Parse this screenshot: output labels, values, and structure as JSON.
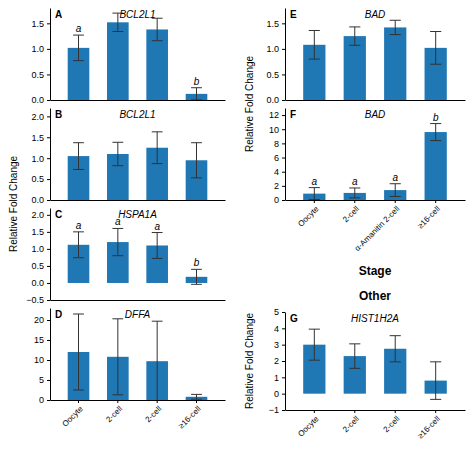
{
  "chart_data": [
    {
      "type": "bar",
      "title": "BCL2L1",
      "panel_label": "A",
      "ylabel": "Relative Fold Change",
      "categories": [
        null,
        null,
        null,
        null
      ],
      "tick_labels": "y",
      "values": [
        1.02,
        1.52,
        1.38,
        0.12
      ],
      "errors": [
        0.25,
        0.18,
        0.22,
        0.12
      ],
      "sig_letters": [
        "a",
        null,
        null,
        "b"
      ],
      "ylim": [
        0,
        1.8
      ],
      "yticks": [
        {
          "value": 0,
          "label": "0.0"
        },
        0.5,
        {
          "value": 1.0,
          "label": "1.0"
        },
        1.5
      ]
    },
    {
      "type": "bar",
      "title": "BCL2L1",
      "panel_label": "B",
      "categories": [
        null,
        null,
        null,
        null
      ],
      "tick_labels": "y",
      "values": [
        1.05,
        1.1,
        1.25,
        0.95
      ],
      "errors": [
        0.32,
        0.28,
        0.38,
        0.42
      ],
      "ylim": [
        0,
        2.2
      ],
      "yticks": [
        {
          "value": 0,
          "label": "0.0"
        },
        0.5,
        {
          "value": 1.0,
          "label": "1.0"
        },
        1.5,
        {
          "value": 2.0,
          "label": "2.0"
        }
      ]
    },
    {
      "type": "bar",
      "title": "HSPA1A",
      "panel_label": "C",
      "categories": [
        null,
        null,
        null,
        null
      ],
      "tick_labels": "y",
      "values": [
        1.12,
        1.2,
        1.1,
        0.18
      ],
      "errors": [
        0.38,
        0.4,
        0.38,
        0.22
      ],
      "sig_letters": [
        "a",
        "a",
        "a",
        "b"
      ],
      "ylim": [
        -0.5,
        2.2
      ],
      "yticks": [
        {
          "value": -0.5,
          "label": "−0.5"
        },
        {
          "value": 0,
          "label": "0.0"
        },
        0.5,
        {
          "value": 1.0,
          "label": "1.0"
        },
        1.5,
        {
          "value": 2.0,
          "label": "2.0"
        }
      ]
    },
    {
      "type": "bar",
      "title": "DFFA",
      "panel_label": "D",
      "categories": [
        "Oocyte",
        "2-cell",
        "2-cell",
        "≥16-cell"
      ],
      "values": [
        12.0,
        10.8,
        9.7,
        0.8
      ],
      "errors": [
        9.5,
        9.5,
        10.0,
        0.6
      ],
      "ylim": [
        0,
        23
      ],
      "yticks": [
        0,
        5,
        10,
        15,
        20
      ]
    },
    {
      "type": "bar",
      "title": "BAD",
      "panel_label": "E",
      "ylabel": "Relative Fold Change",
      "categories": [
        null,
        null,
        null,
        null
      ],
      "tick_labels": "y",
      "values": [
        1.08,
        1.25,
        1.42,
        1.02
      ],
      "errors": [
        0.28,
        0.18,
        0.14,
        0.32
      ],
      "ylim": [
        0,
        1.8
      ],
      "yticks": [
        {
          "value": 0,
          "label": "0.0"
        },
        0.5,
        {
          "value": 1.0,
          "label": "1.0"
        },
        1.5
      ]
    },
    {
      "type": "bar",
      "title": "BAD",
      "panel_label": "F",
      "xlabel": "Stage",
      "categories": [
        "Oocyte",
        "2-cell",
        "α-Amanitin 2-cell",
        "≥16-cell"
      ],
      "values": [
        0.9,
        1.0,
        1.4,
        9.6
      ],
      "errors": [
        0.85,
        0.7,
        0.9,
        1.2
      ],
      "sig_letters": [
        "a",
        "a",
        "a",
        "b"
      ],
      "ylim": [
        0,
        13
      ],
      "yticks": [
        0,
        2,
        4,
        6,
        8,
        10,
        12
      ]
    },
    {
      "type": "bar",
      "title": "HIST1H2A",
      "panel_label": "G",
      "ylabel": "Relative Fold Change",
      "annotations": [
        "Other"
      ],
      "categories": [
        "Oocyte",
        "2-cell",
        "2-cell",
        "≥16-cell"
      ],
      "values": [
        3.0,
        2.3,
        2.75,
        0.8
      ],
      "errors": [
        0.95,
        0.75,
        0.8,
        1.15
      ],
      "ylim": [
        -1,
        5
      ],
      "yticks": [
        {
          "value": -1,
          "label": "−1"
        },
        0,
        1,
        2,
        3,
        4,
        5
      ]
    }
  ]
}
